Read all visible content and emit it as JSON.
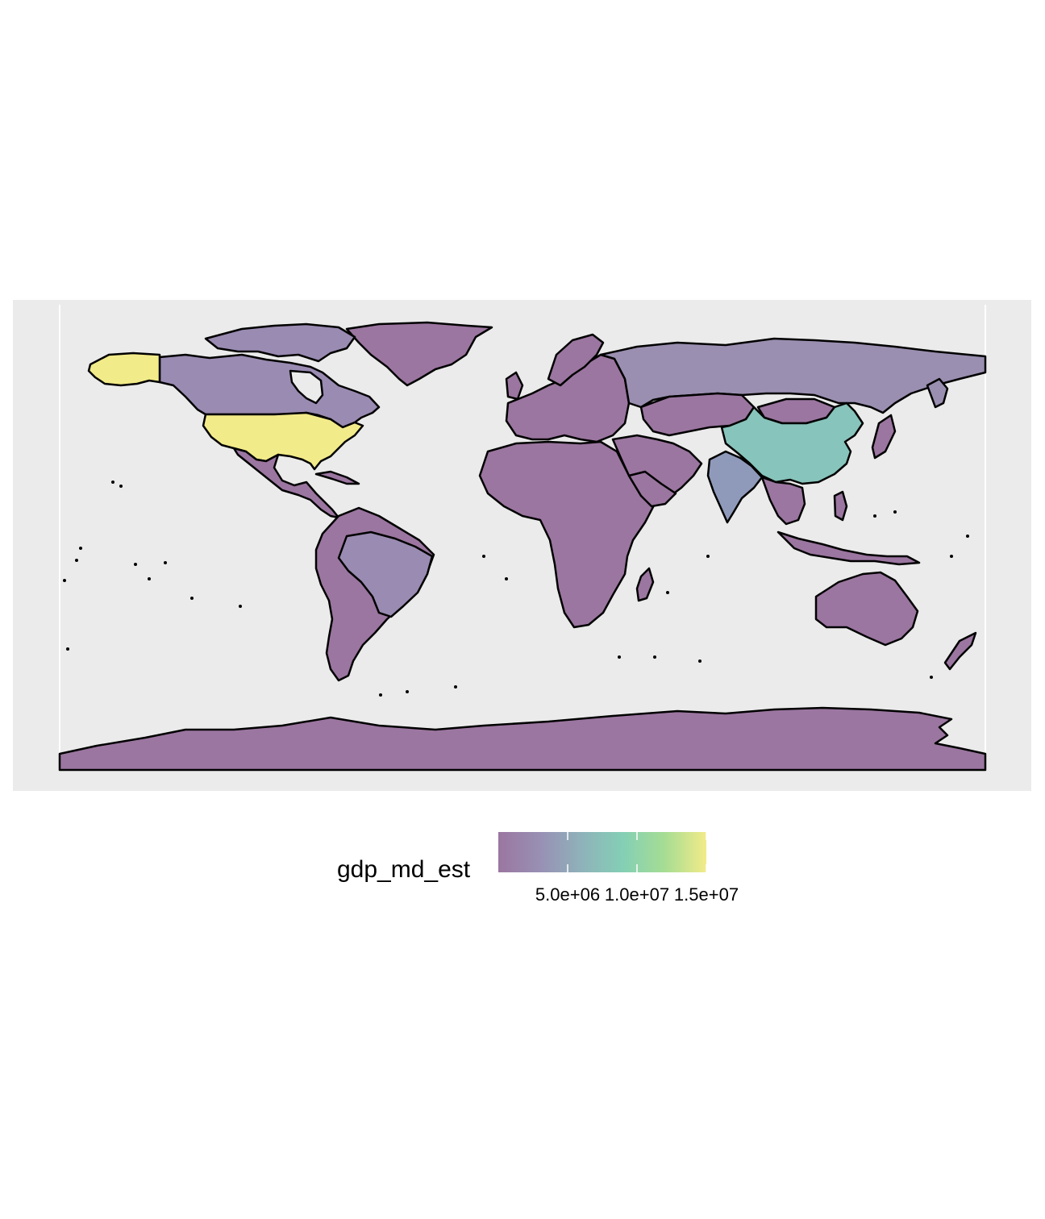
{
  "legend": {
    "title": "gdp_md_est",
    "ticks": [
      {
        "value": 5000000,
        "label": "5.0e+06"
      },
      {
        "value": 10000000,
        "label": "1.0e+07"
      },
      {
        "value": 15000000,
        "label": "1.5e+07"
      }
    ],
    "range": [
      0,
      15000000
    ],
    "palette": [
      "#9b76a0",
      "#9890b4",
      "#8fb2ba",
      "#84cfb5",
      "#a6dd93",
      "#f2eb89"
    ],
    "bar_fill_alpha": 0.6
  },
  "colors": {
    "panel_background": "#ebebeb",
    "ocean_lines": "#ffffff",
    "country_border": "#000000",
    "low_gdp": "#9b76a0",
    "russia": "#9a8fb0",
    "brazil_canada": "#9a8bb2",
    "india": "#8f9aba",
    "china": "#87c4bb",
    "usa": "#f2eb89"
  },
  "map_data": {
    "type": "choropleth",
    "variable": "gdp_md_est",
    "regions": [
      {
        "name": "United States",
        "fill_key": "usa",
        "value_est": 15600000
      },
      {
        "name": "China",
        "fill_key": "china",
        "value_est": 11200000
      },
      {
        "name": "India",
        "fill_key": "india",
        "value_est": 4500000
      },
      {
        "name": "Russia",
        "fill_key": "russia",
        "value_est": 3200000
      },
      {
        "name": "Brazil",
        "fill_key": "brazil_canada",
        "value_est": 3000000
      },
      {
        "name": "Canada",
        "fill_key": "brazil_canada",
        "value_est": 1500000
      },
      {
        "name": "Other countries",
        "fill_key": "low_gdp",
        "value_est": 500000
      }
    ]
  }
}
